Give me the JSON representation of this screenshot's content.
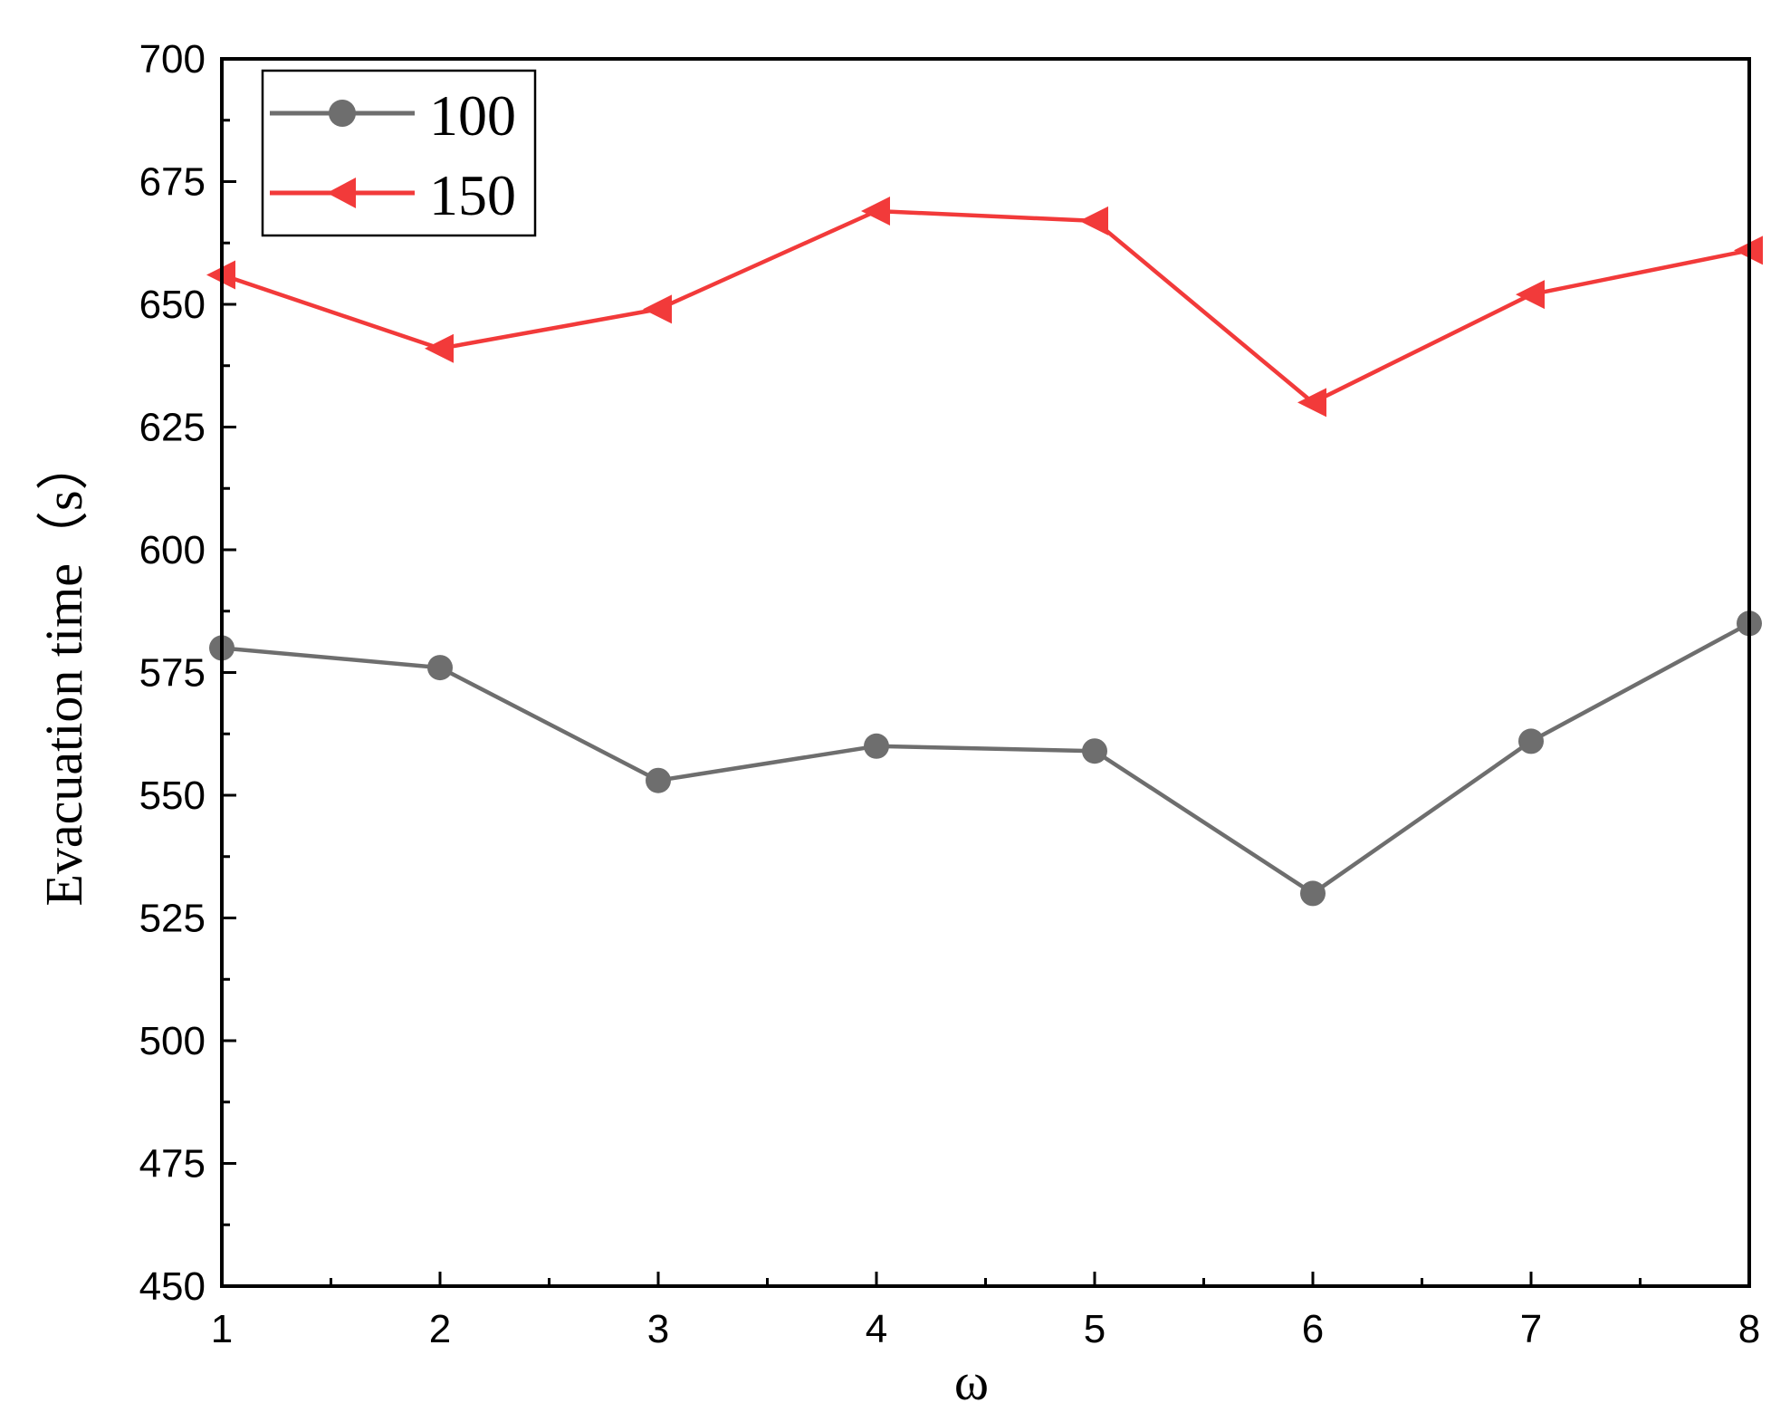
{
  "chart_data": {
    "type": "line",
    "xlabel": "ω",
    "ylabel": "Evacuation time（s）",
    "x": [
      1,
      2,
      3,
      4,
      5,
      6,
      7,
      8
    ],
    "xticks": [
      "1",
      "2",
      "3",
      "4",
      "5",
      "6",
      "7",
      "8"
    ],
    "xlim": [
      1,
      8
    ],
    "ylim": [
      450,
      700
    ],
    "yticks": [
      "450",
      "475",
      "500",
      "525",
      "550",
      "575",
      "600",
      "625",
      "650",
      "675",
      "700"
    ],
    "grid": false,
    "legend_position": "top-left",
    "series": [
      {
        "name": "100",
        "color": "#6e6e6e",
        "marker": "circle",
        "values": [
          580,
          576,
          553,
          560,
          559,
          530,
          561,
          585
        ]
      },
      {
        "name": "150",
        "color": "#f23a3a",
        "marker": "triangle-left",
        "values": [
          656,
          641,
          649,
          669,
          667,
          630,
          652,
          661
        ]
      }
    ]
  }
}
